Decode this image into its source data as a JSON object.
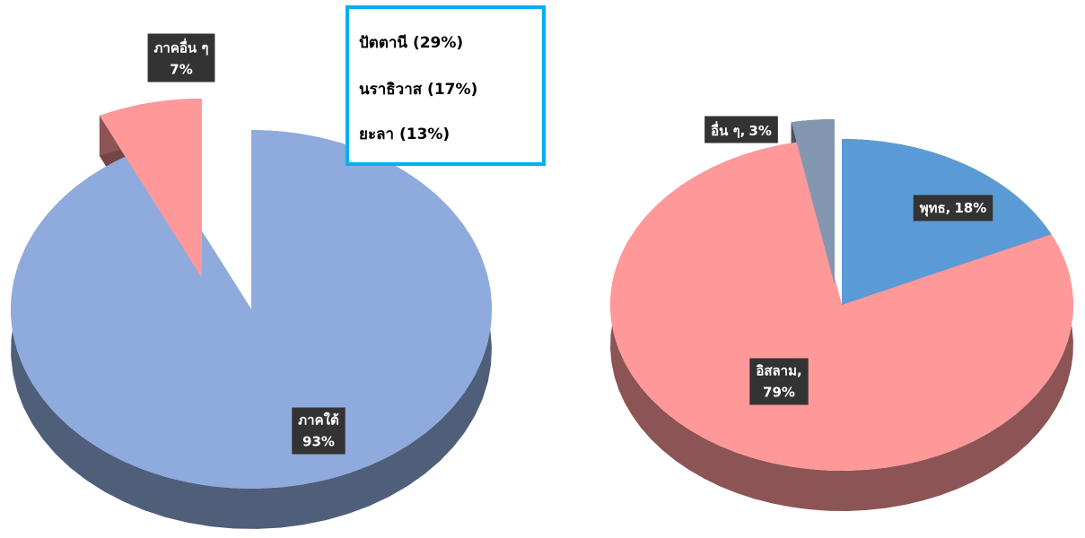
{
  "chart_data": [
    {
      "type": "pie",
      "categories": [
        "ภาคใต้",
        "ภาคอื่น ๆ"
      ],
      "values": [
        93,
        7
      ],
      "value_labels": [
        "93%",
        "7%"
      ],
      "colors": [
        "#8faadc",
        "#ff9999"
      ],
      "annotations": [
        "ปัตตานี (29%)",
        "นราธิวาส (17%)",
        "ยะลา (13%)"
      ]
    },
    {
      "type": "pie",
      "categories": [
        "พุทธ,",
        "อิสลาม,",
        "อื่น ๆ,"
      ],
      "values": [
        18,
        79,
        3
      ],
      "value_labels": [
        "18%",
        "79%",
        "3%"
      ],
      "colors": [
        "#5b9bd5",
        "#ff9999",
        "#8497b0"
      ]
    }
  ]
}
